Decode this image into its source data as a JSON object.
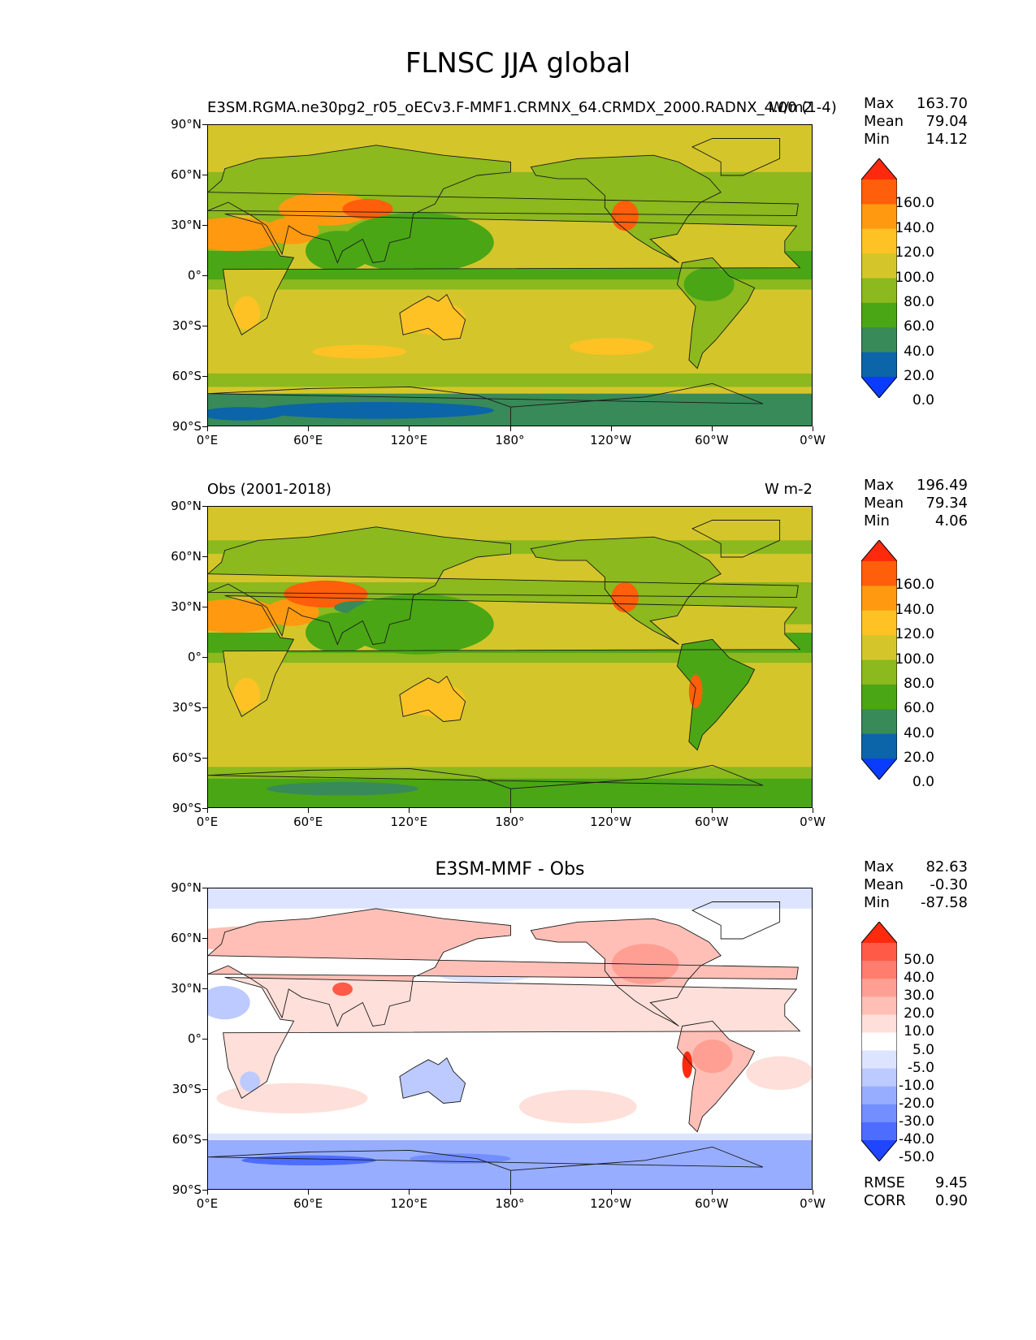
{
  "title": "FLNSC JJA global",
  "lat_ticks": [
    "90°N",
    "60°N",
    "30°N",
    "0°",
    "30°S",
    "60°S",
    "90°S"
  ],
  "lon_ticks": [
    "0°E",
    "60°E",
    "120°E",
    "180°",
    "120°W",
    "60°W",
    "0°W"
  ],
  "panels": [
    {
      "left_title": "E3SM.RGMA.ne30pg2_r05_oECv3.F-MMF1.CRMNX_64.CRMDX_2000.RADNX_4.00 (1-4)",
      "right_title": "W/m2",
      "center_title": "",
      "stats": [
        {
          "label": "Max",
          "value": "163.70"
        },
        {
          "label": "Mean",
          "value": "79.04"
        },
        {
          "label": "Min",
          "value": "14.12"
        }
      ],
      "colorbar": {
        "labels": [
          "160.0",
          "140.0",
          "120.0",
          "100.0",
          "80.0",
          "60.0",
          "40.0",
          "20.0",
          "0.0"
        ],
        "colors": [
          "#ff2a0d",
          "#ff5e0a",
          "#ff9a10",
          "#ffc225",
          "#d4c62a",
          "#8bb91e",
          "#4aa615",
          "#388a58",
          "#0b65a8",
          "#0a3cff"
        ]
      }
    },
    {
      "left_title": "Obs (2001-2018)",
      "right_title": "W m-2",
      "center_title": "",
      "stats": [
        {
          "label": "Max",
          "value": "196.49"
        },
        {
          "label": "Mean",
          "value": "79.34"
        },
        {
          "label": "Min",
          "value": "4.06"
        }
      ],
      "colorbar": {
        "labels": [
          "160.0",
          "140.0",
          "120.0",
          "100.0",
          "80.0",
          "60.0",
          "40.0",
          "20.0",
          "0.0"
        ],
        "colors": [
          "#ff2a0d",
          "#ff5e0a",
          "#ff9a10",
          "#ffc225",
          "#d4c62a",
          "#8bb91e",
          "#4aa615",
          "#388a58",
          "#0b65a8",
          "#0a3cff"
        ]
      }
    },
    {
      "left_title": "",
      "right_title": "",
      "center_title": "E3SM-MMF - Obs",
      "stats": [
        {
          "label": "Max",
          "value": "82.63"
        },
        {
          "label": "Mean",
          "value": "-0.30"
        },
        {
          "label": "Min",
          "value": "-87.58"
        }
      ],
      "colorbar": {
        "labels": [
          "50.0",
          "40.0",
          "30.0",
          "20.0",
          "10.0",
          "5.0",
          "-5.0",
          "-10.0",
          "-20.0",
          "-30.0",
          "-40.0",
          "-50.0"
        ],
        "colors": [
          "#ff2a0d",
          "#ff5a48",
          "#ff7d6e",
          "#ff9f94",
          "#ffbfb6",
          "#ffdfd9",
          "#ffffff",
          "#dde4ff",
          "#bccaff",
          "#97adff",
          "#728eff",
          "#4d6dff",
          "#1f45ff"
        ]
      },
      "extra_stats": [
        {
          "label": "RMSE",
          "value": "9.45"
        },
        {
          "label": "CORR",
          "value": "0.90"
        }
      ]
    }
  ],
  "chart_data": [
    {
      "type": "heatmap",
      "title": "FLNSC JJA global",
      "subtitle": "E3SM.RGMA.ne30pg2_r05_oECv3.F-MMF1.CRMNX_64.CRMDX_2000.RADNX_4.00 (1-4)",
      "units": "W/m2",
      "x_range": [
        0,
        360
      ],
      "y_range": [
        -90,
        90
      ],
      "stats": {
        "max": 163.7,
        "mean": 79.04,
        "min": 14.12
      },
      "levels": [
        0,
        20,
        40,
        60,
        80,
        100,
        120,
        140,
        160
      ]
    },
    {
      "type": "heatmap",
      "title": "Obs (2001-2018)",
      "units": "W m-2",
      "x_range": [
        0,
        360
      ],
      "y_range": [
        -90,
        90
      ],
      "stats": {
        "max": 196.49,
        "mean": 79.34,
        "min": 4.06
      },
      "levels": [
        0,
        20,
        40,
        60,
        80,
        100,
        120,
        140,
        160
      ]
    },
    {
      "type": "heatmap",
      "title": "E3SM-MMF - Obs",
      "x_range": [
        0,
        360
      ],
      "y_range": [
        -90,
        90
      ],
      "stats": {
        "max": 82.63,
        "mean": -0.3,
        "min": -87.58,
        "rmse": 9.45,
        "corr": 0.9
      },
      "levels": [
        -50,
        -40,
        -30,
        -20,
        -10,
        -5,
        5,
        10,
        20,
        30,
        40,
        50
      ]
    }
  ]
}
